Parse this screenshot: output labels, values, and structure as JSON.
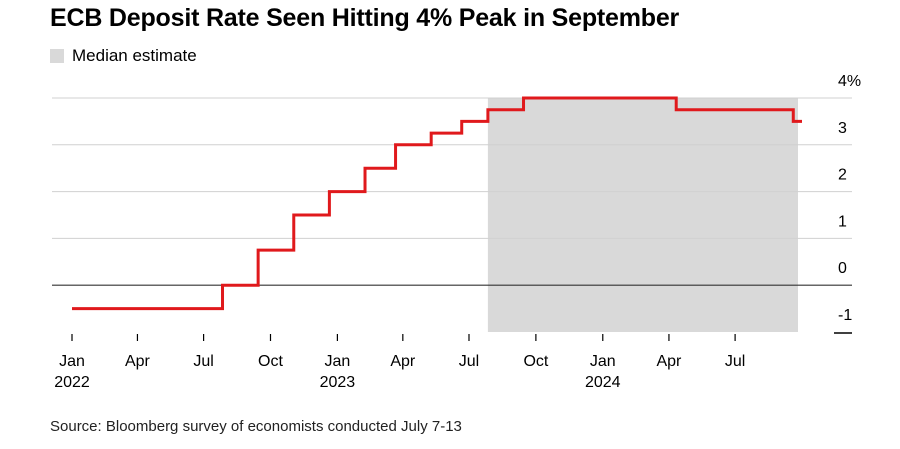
{
  "chart_data": {
    "type": "line",
    "title": "ECB Deposit Rate Seen Hitting 4% Peak in September",
    "legend": [
      {
        "label": "Median estimate",
        "color": "#d9d9d9"
      }
    ],
    "source": "Source: Bloomberg survey of economists conducted July 7-13",
    "x_ticks": [
      {
        "month": "Jan",
        "year": "2022",
        "date": "2022-01-01"
      },
      {
        "month": "Apr",
        "year": "",
        "date": "2022-04-01"
      },
      {
        "month": "Jul",
        "year": "",
        "date": "2022-07-01"
      },
      {
        "month": "Oct",
        "year": "",
        "date": "2022-10-01"
      },
      {
        "month": "Jan",
        "year": "2023",
        "date": "2023-01-01"
      },
      {
        "month": "Apr",
        "year": "",
        "date": "2023-04-01"
      },
      {
        "month": "Jul",
        "year": "",
        "date": "2023-07-01"
      },
      {
        "month": "Oct",
        "year": "",
        "date": "2023-10-01"
      },
      {
        "month": "Jan",
        "year": "2024",
        "date": "2024-01-01"
      },
      {
        "month": "Apr",
        "year": "",
        "date": "2024-04-01"
      },
      {
        "month": "Jul",
        "year": "",
        "date": "2024-07-01"
      }
    ],
    "y_ticks": [
      {
        "value": 4,
        "label": "4%"
      },
      {
        "value": 3,
        "label": "3"
      },
      {
        "value": 2,
        "label": "2"
      },
      {
        "value": 1,
        "label": "1"
      },
      {
        "value": 0,
        "label": "0"
      },
      {
        "value": -1,
        "label": "-1"
      }
    ],
    "ylim": [
      -1,
      4
    ],
    "xlim": [
      "2022-01-01",
      "2024-10-01"
    ],
    "shaded_region": {
      "start": "2023-07-27",
      "end": "2024-10-01",
      "label": "Median estimate"
    },
    "series": [
      {
        "color": "#e0191c",
        "step": true,
        "points": [
          {
            "date": "2022-01-01",
            "value": -0.5
          },
          {
            "date": "2022-07-27",
            "value": 0.0
          },
          {
            "date": "2022-09-14",
            "value": 0.75
          },
          {
            "date": "2022-11-02",
            "value": 1.5
          },
          {
            "date": "2022-12-21",
            "value": 2.0
          },
          {
            "date": "2023-02-08",
            "value": 2.5
          },
          {
            "date": "2023-03-22",
            "value": 3.0
          },
          {
            "date": "2023-05-10",
            "value": 3.25
          },
          {
            "date": "2023-06-21",
            "value": 3.5
          },
          {
            "date": "2023-07-27",
            "value": 3.75
          },
          {
            "date": "2023-09-14",
            "value": 4.0
          },
          {
            "date": "2024-04-11",
            "value": 3.75
          },
          {
            "date": "2024-09-19",
            "value": 3.5
          },
          {
            "date": "2024-10-01",
            "value": 3.5
          }
        ]
      }
    ]
  }
}
